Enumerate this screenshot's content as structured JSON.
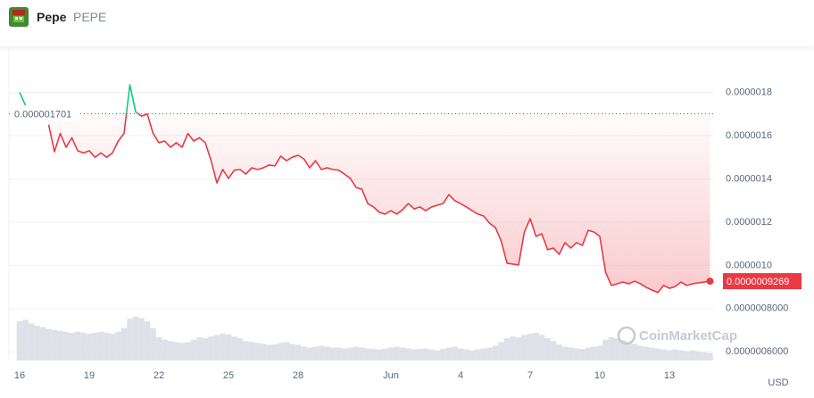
{
  "header": {
    "name": "Pepe",
    "symbol": "PEPE"
  },
  "chart_data": {
    "type": "line",
    "categories": [
      "16",
      null,
      null,
      null,
      null,
      null,
      null,
      null,
      null,
      null,
      null,
      null,
      "19",
      null,
      null,
      null,
      null,
      null,
      null,
      null,
      null,
      null,
      null,
      null,
      "22",
      null,
      null,
      null,
      null,
      null,
      null,
      null,
      null,
      null,
      null,
      null,
      "25",
      null,
      null,
      null,
      null,
      null,
      null,
      null,
      null,
      null,
      null,
      null,
      "28",
      null,
      null,
      null,
      null,
      null,
      null,
      null,
      null,
      null,
      null,
      null,
      null,
      null,
      null,
      null,
      "Jun",
      null,
      null,
      null,
      null,
      null,
      null,
      null,
      null,
      null,
      null,
      null,
      "4",
      null,
      null,
      null,
      null,
      null,
      null,
      null,
      null,
      null,
      null,
      null,
      "7",
      null,
      null,
      null,
      null,
      null,
      null,
      null,
      null,
      null,
      null,
      null,
      "10",
      null,
      null,
      null,
      null,
      null,
      null,
      null,
      null,
      null,
      null,
      null,
      "13",
      null,
      null,
      null,
      null,
      null,
      null,
      null
    ],
    "values": [
      1.8e-06,
      1.74e-06,
      null,
      null,
      null,
      1.65e-06,
      1.525e-06,
      1.61e-06,
      1.546e-06,
      1.59e-06,
      1.53e-06,
      1.52e-06,
      1.53e-06,
      1.5e-06,
      1.52e-06,
      1.5e-06,
      1.52e-06,
      1.575e-06,
      1.61e-06,
      1.835e-06,
      1.71e-06,
      1.69e-06,
      1.7e-06,
      1.61e-06,
      1.567e-06,
      1.575e-06,
      1.546e-06,
      1.567e-06,
      1.546e-06,
      1.61e-06,
      1.575e-06,
      1.59e-06,
      1.567e-06,
      1.484e-06,
      1.381e-06,
      1.443e-06,
      1.402e-06,
      1.44e-06,
      1.443e-06,
      1.422e-06,
      1.451e-06,
      1.443e-06,
      1.451e-06,
      1.464e-06,
      1.46e-06,
      1.505e-06,
      1.484e-06,
      1.5e-06,
      1.509e-06,
      1.492e-06,
      1.451e-06,
      1.484e-06,
      1.443e-06,
      1.451e-06,
      1.443e-06,
      1.44e-06,
      1.422e-06,
      1.402e-06,
      1.36e-06,
      1.352e-06,
      1.286e-06,
      1.27e-06,
      1.245e-06,
      1.237e-06,
      1.253e-06,
      1.237e-06,
      1.257e-06,
      1.286e-06,
      1.261e-06,
      1.27e-06,
      1.253e-06,
      1.27e-06,
      1.278e-06,
      1.286e-06,
      1.327e-06,
      1.299e-06,
      1.286e-06,
      1.27e-06,
      1.253e-06,
      1.237e-06,
      1.228e-06,
      1.195e-06,
      1.175e-06,
      1.113e-06,
      1.01e-06,
      1.006e-06,
      1.002e-06,
      1.154e-06,
      1.216e-06,
      1.134e-06,
      1.146e-06,
      1.072e-06,
      1.08e-06,
      1.051e-06,
      1.105e-06,
      1.08e-06,
      1.105e-06,
      1.092e-06,
      1.162e-06,
      1.154e-06,
      1.134e-06,
      9.68e-07,
      9.07e-07,
      9.15e-07,
      9.23e-07,
      9.15e-07,
      9.27e-07,
      9.15e-07,
      8.98e-07,
      8.86e-07,
      8.74e-07,
      9.07e-07,
      8.94e-07,
      9.02e-07,
      9.23e-07,
      9.07e-07,
      9.15e-07,
      9.19e-07,
      9.23e-07,
      9.269e-07
    ],
    "up_color": "#16c784",
    "down_color": "#ea3943",
    "baseline": {
      "value": 1.701e-06,
      "label": "0.000001701"
    },
    "current_price": {
      "value": 9.269e-07,
      "label": "0.0000009269"
    },
    "ylim": [
      5.6e-07,
      2e-06
    ],
    "yticks": [
      1.8e-06,
      1.6e-06,
      1.4e-06,
      1.2e-06,
      {
        "value": 1e-06,
        "label": "0.0000010"
      },
      {
        "value": 8e-07,
        "label": "0.0000008000"
      },
      {
        "value": 6e-07,
        "label": "0.0000006000"
      }
    ],
    "grid": true,
    "currency": "USD",
    "watermark": "CoinMarketCap",
    "volume": {
      "color": "#d3d8e0",
      "ylim": [
        0,
        100
      ],
      "values": [
        85,
        88,
        80,
        75,
        72,
        68,
        66,
        64,
        62,
        60,
        62,
        60,
        58,
        60,
        62,
        60,
        58,
        62,
        70,
        90,
        95,
        92,
        85,
        70,
        50,
        45,
        42,
        40,
        38,
        40,
        45,
        50,
        48,
        52,
        55,
        58,
        56,
        52,
        48,
        42,
        40,
        38,
        36,
        34,
        35,
        38,
        40,
        36,
        34,
        30,
        28,
        30,
        32,
        30,
        28,
        28,
        26,
        28,
        30,
        28,
        26,
        25,
        24,
        26,
        28,
        30,
        28,
        26,
        24,
        25,
        26,
        24,
        22,
        25,
        28,
        30,
        26,
        24,
        22,
        24,
        26,
        28,
        32,
        40,
        48,
        52,
        50,
        55,
        58,
        60,
        55,
        48,
        42,
        35,
        30,
        28,
        26,
        25,
        28,
        30,
        32,
        45,
        50,
        48,
        44,
        40,
        36,
        32,
        30,
        28,
        26,
        24,
        22,
        24,
        22,
        20,
        22,
        20,
        18,
        16
      ]
    }
  }
}
